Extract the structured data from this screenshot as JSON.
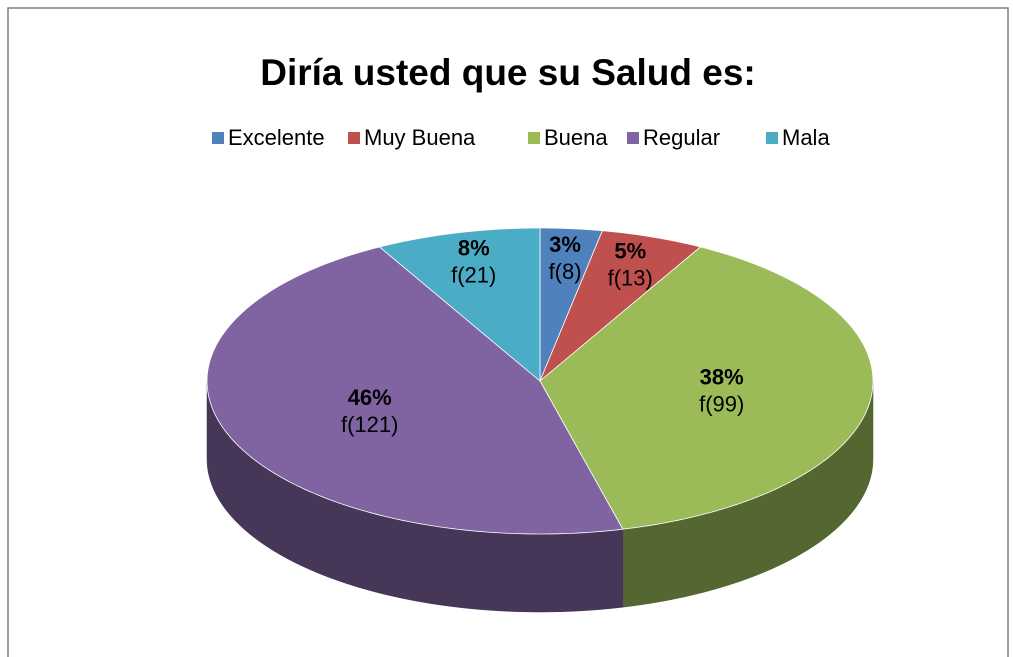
{
  "chart_data": {
    "type": "pie",
    "title": "Diría usted que su Salud es:",
    "categories": [
      "Excelente",
      "Muy Buena",
      "Buena",
      "Regular",
      "Mala"
    ],
    "values": [
      3,
      5,
      38,
      46,
      8
    ],
    "value_labels": [
      "3%",
      "5%",
      "38%",
      "46%",
      "8%"
    ],
    "frequency_labels": [
      "f(8)",
      "f(13)",
      "f(99)",
      "f(121)",
      "f(21)"
    ],
    "colors": [
      "#4f81bd",
      "#c0504d",
      "#9bbb59",
      "#8064a2",
      "#4bacc6"
    ],
    "legend": "top"
  }
}
